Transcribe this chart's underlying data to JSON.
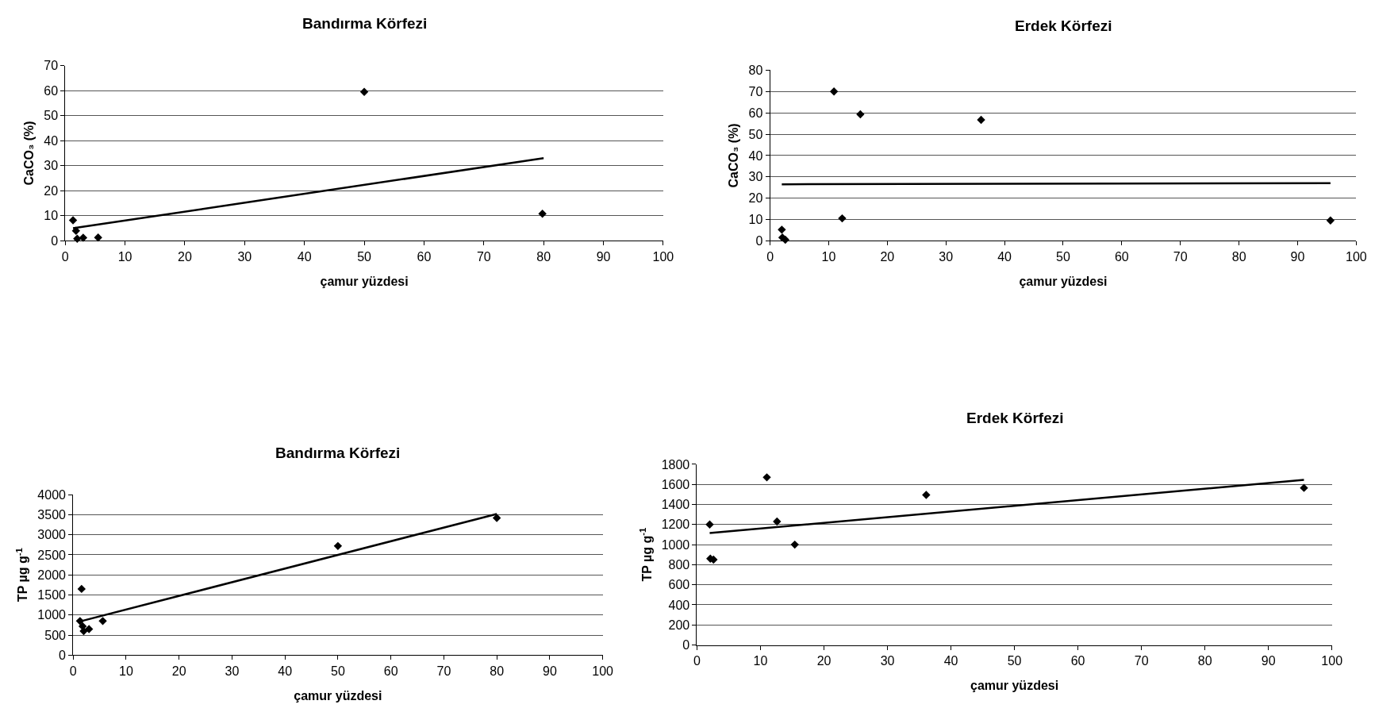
{
  "chart_data": [
    {
      "type": "scatter",
      "title": "Bandırma Körfezi",
      "xlabel": "çamur yüzdesi",
      "ylabel": "CaCO₃ (%)",
      "xlim": [
        0,
        100
      ],
      "xticks": [
        0,
        10,
        20,
        30,
        40,
        50,
        60,
        70,
        80,
        90,
        100
      ],
      "ylim": [
        0,
        70
      ],
      "yticks": [
        0,
        10,
        20,
        30,
        40,
        50,
        60,
        70
      ],
      "grid": "y",
      "marker": "diamond",
      "series": [
        {
          "color": "#000000",
          "x": [
            1.3,
            1.8,
            2.0,
            3.0,
            5.5,
            50,
            79.8
          ],
          "values": [
            8.2,
            4.0,
            0.8,
            1.2,
            1.3,
            59.5,
            10.8
          ]
        },
        {
          "type": "line",
          "color": "#000000",
          "marker": "none",
          "x": [
            1.3,
            80
          ],
          "values": [
            5,
            33
          ]
        }
      ]
    },
    {
      "type": "scatter",
      "title": "Erdek Körfezi",
      "xlabel": "çamur yüzdesi",
      "ylabel": "CaCO₃ (%)",
      "xlim": [
        0,
        100
      ],
      "xticks": [
        0,
        10,
        20,
        30,
        40,
        50,
        60,
        70,
        80,
        90,
        100
      ],
      "ylim": [
        0,
        80
      ],
      "yticks": [
        0,
        10,
        20,
        30,
        40,
        50,
        60,
        70,
        80
      ],
      "grid": "y",
      "marker": "diamond",
      "series": [
        {
          "color": "#000000",
          "x": [
            2.0,
            2.1,
            2.6,
            10.9,
            12.3,
            15.4,
            36.0,
            95.6
          ],
          "values": [
            5.2,
            1.5,
            0.5,
            70,
            10.5,
            59.3,
            56.7,
            9.5
          ]
        },
        {
          "type": "line",
          "color": "#000000",
          "marker": "none",
          "x": [
            2.0,
            95.6
          ],
          "values": [
            26.5,
            27
          ]
        }
      ]
    },
    {
      "type": "scatter",
      "title": "Bandırma Körfezi",
      "xlabel": "çamur yüzdesi",
      "ylabel": "TP µg g$^{-1}$",
      "xlim": [
        0,
        100
      ],
      "xticks": [
        0,
        10,
        20,
        30,
        40,
        50,
        60,
        70,
        80,
        90,
        100
      ],
      "ylim": [
        0,
        4000
      ],
      "yticks": [
        0,
        500,
        1000,
        1500,
        2000,
        2500,
        3000,
        3500,
        4000
      ],
      "grid": "y",
      "marker": "diamond",
      "series": [
        {
          "color": "#000000",
          "x": [
            1.3,
            1.6,
            1.8,
            2.0,
            3.0,
            5.6,
            50,
            80
          ],
          "values": [
            850,
            1650,
            720,
            600,
            650,
            850,
            2720,
            3420
          ]
        },
        {
          "type": "line",
          "color": "#000000",
          "marker": "none",
          "x": [
            1.3,
            80
          ],
          "values": [
            840,
            3520
          ]
        }
      ]
    },
    {
      "type": "scatter",
      "title": "Erdek Körfezi",
      "xlabel": "çamur yüzdesi",
      "ylabel": "TP µg g$^{-1}$",
      "xlim": [
        0,
        100
      ],
      "xticks": [
        0,
        10,
        20,
        30,
        40,
        50,
        60,
        70,
        80,
        90,
        100
      ],
      "ylim": [
        0,
        1800
      ],
      "yticks": [
        0,
        200,
        400,
        600,
        800,
        1000,
        1200,
        1400,
        1600,
        1800
      ],
      "grid": "y",
      "marker": "diamond",
      "series": [
        {
          "color": "#000000",
          "x": [
            2.0,
            2.1,
            2.6,
            11.0,
            12.6,
            15.4,
            36.1,
            95.6
          ],
          "values": [
            1200,
            860,
            850,
            1670,
            1230,
            1000,
            1495,
            1565
          ]
        },
        {
          "type": "line",
          "color": "#000000",
          "marker": "none",
          "x": [
            2.0,
            95.6
          ],
          "values": [
            1115,
            1645
          ]
        }
      ]
    }
  ]
}
